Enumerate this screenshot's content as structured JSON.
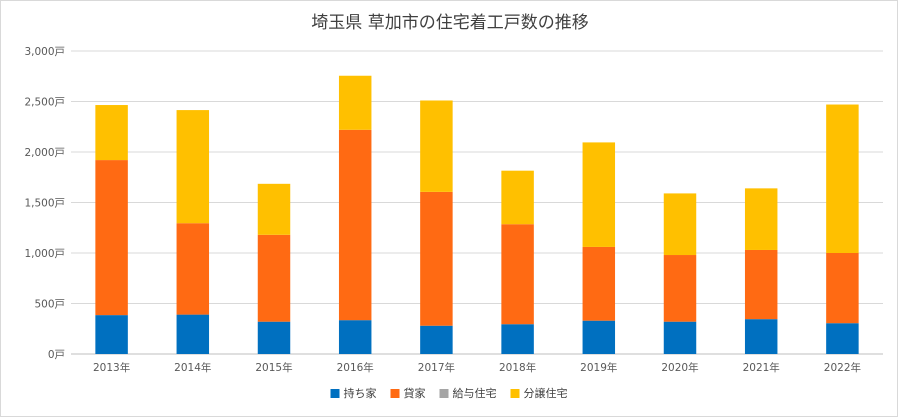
{
  "chart_data": {
    "type": "bar",
    "stacked": true,
    "title": "埼玉県 草加市の住宅着工戸数の推移",
    "xlabel": "",
    "ylabel": "",
    "categories": [
      "2013年",
      "2014年",
      "2015年",
      "2016年",
      "2017年",
      "2018年",
      "2019年",
      "2020年",
      "2021年",
      "2022年"
    ],
    "yticks": [
      "0戸",
      "500戸",
      "1,000戸",
      "1,500戸",
      "2,000戸",
      "2,500戸",
      "3,000戸"
    ],
    "ylim": [
      0,
      3000
    ],
    "grid": true,
    "legend_position": "bottom",
    "series": [
      {
        "name": "持ち家",
        "color": "#0070c0",
        "values": [
          385,
          390,
          320,
          335,
          280,
          295,
          330,
          320,
          345,
          305
        ]
      },
      {
        "name": "貸家",
        "color": "#ff6a13",
        "values": [
          1535,
          905,
          860,
          1885,
          1325,
          990,
          730,
          660,
          685,
          695
        ]
      },
      {
        "name": "給与住宅",
        "color": "#a5a5a5",
        "values": [
          0,
          0,
          0,
          0,
          0,
          0,
          0,
          0,
          0,
          0
        ]
      },
      {
        "name": "分譲住宅",
        "color": "#ffc000",
        "values": [
          545,
          1120,
          505,
          535,
          905,
          530,
          1035,
          610,
          610,
          1470
        ]
      }
    ]
  }
}
